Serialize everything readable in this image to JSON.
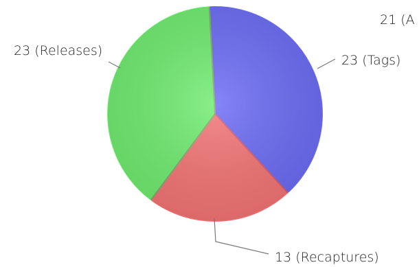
{
  "chart_data": {
    "type": "pie",
    "slices": [
      {
        "label": "Tags",
        "value": 23,
        "text": "23 (Tags)",
        "color": "#6b6bf5"
      },
      {
        "label": "Recaptures",
        "value": 13,
        "text": "13 (Recaptures)",
        "color": "#f47474"
      },
      {
        "label": "Releases",
        "value": 23,
        "text": "23 (Releases)",
        "color": "#6fec6f"
      }
    ],
    "partial_label": {
      "text": "21 (A",
      "note": "cut off at the right edge"
    },
    "title": ""
  }
}
